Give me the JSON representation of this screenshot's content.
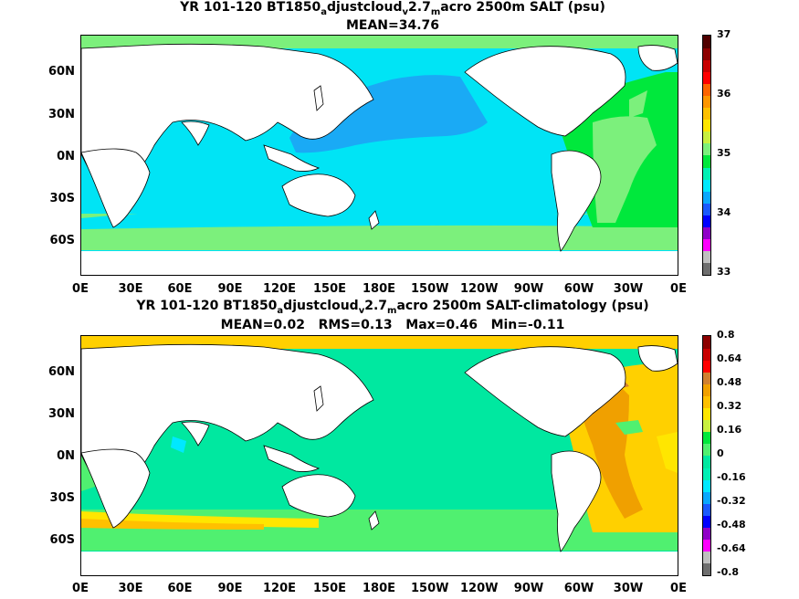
{
  "panels": [
    {
      "title_parts": [
        "YR 101-120 BT1850",
        "a",
        "djustcloud",
        "v",
        "2.7",
        "m",
        "acro 2500m SALT (psu)"
      ],
      "stats": "MEAN=34.76",
      "colorbar": {
        "labels": [
          "37",
          "36",
          "35",
          "34",
          "33"
        ],
        "colors": [
          "#6e6e6e",
          "#bfbfbf",
          "#ff00ff",
          "#9000c8",
          "#0000ff",
          "#1a5aff",
          "#0aa8ff",
          "#00e8ff",
          "#00f0b4",
          "#00e83c",
          "#7cf07c",
          "#c8f040",
          "#ffe600",
          "#ffc000",
          "#ff9600",
          "#ff6400",
          "#ff0000",
          "#c80000",
          "#8c0000",
          "#500000"
        ]
      },
      "regions": {
        "pacific_north": "#1aaaf5",
        "ocean_main": "#00e4f5",
        "southern_ring": "#7cf07c",
        "atlantic": "#00e83c",
        "atlantic_light": "#7cf07c",
        "arctic": "#00e83c"
      }
    },
    {
      "title_parts": [
        "YR 101-120 BT1850",
        "a",
        "djustcloud",
        "v",
        "2.7",
        "m",
        "acro 2500m SALT-climatology (psu)"
      ],
      "stats": "MEAN=0.02   RMS=0.13   Max=0.46   Min=-0.11",
      "colorbar": {
        "labels": [
          "0.8",
          "0.64",
          "0.48",
          "0.32",
          "0.16",
          "0",
          "-0.16",
          "-0.32",
          "-0.48",
          "-0.64",
          "-0.8"
        ],
        "colors": [
          "#6e6e6e",
          "#bfbfbf",
          "#ff00ff",
          "#9000c8",
          "#0000ff",
          "#1a5aff",
          "#0aa8ff",
          "#00e8ff",
          "#00f0b4",
          "#00e8a0",
          "#50f070",
          "#00e83c",
          "#c8f040",
          "#ffe600",
          "#ffc000",
          "#f0a000",
          "#d08030",
          "#ff0000",
          "#c80000",
          "#8c0000"
        ]
      },
      "regions": {
        "ocean_main": "#00e8a0",
        "atlantic": "#ffd000",
        "atlantic_core": "#f0a000",
        "southern_ring": "#50f070",
        "band_yellow": "#ffe600",
        "arctic": "#ffd000"
      }
    }
  ],
  "lat_ticks": [
    "60N",
    "30N",
    "0N",
    "30S",
    "60S"
  ],
  "lon_ticks": [
    "0E",
    "30E",
    "60E",
    "90E",
    "120E",
    "150E",
    "180E",
    "150W",
    "120W",
    "90W",
    "60W",
    "30W",
    "0E"
  ]
}
